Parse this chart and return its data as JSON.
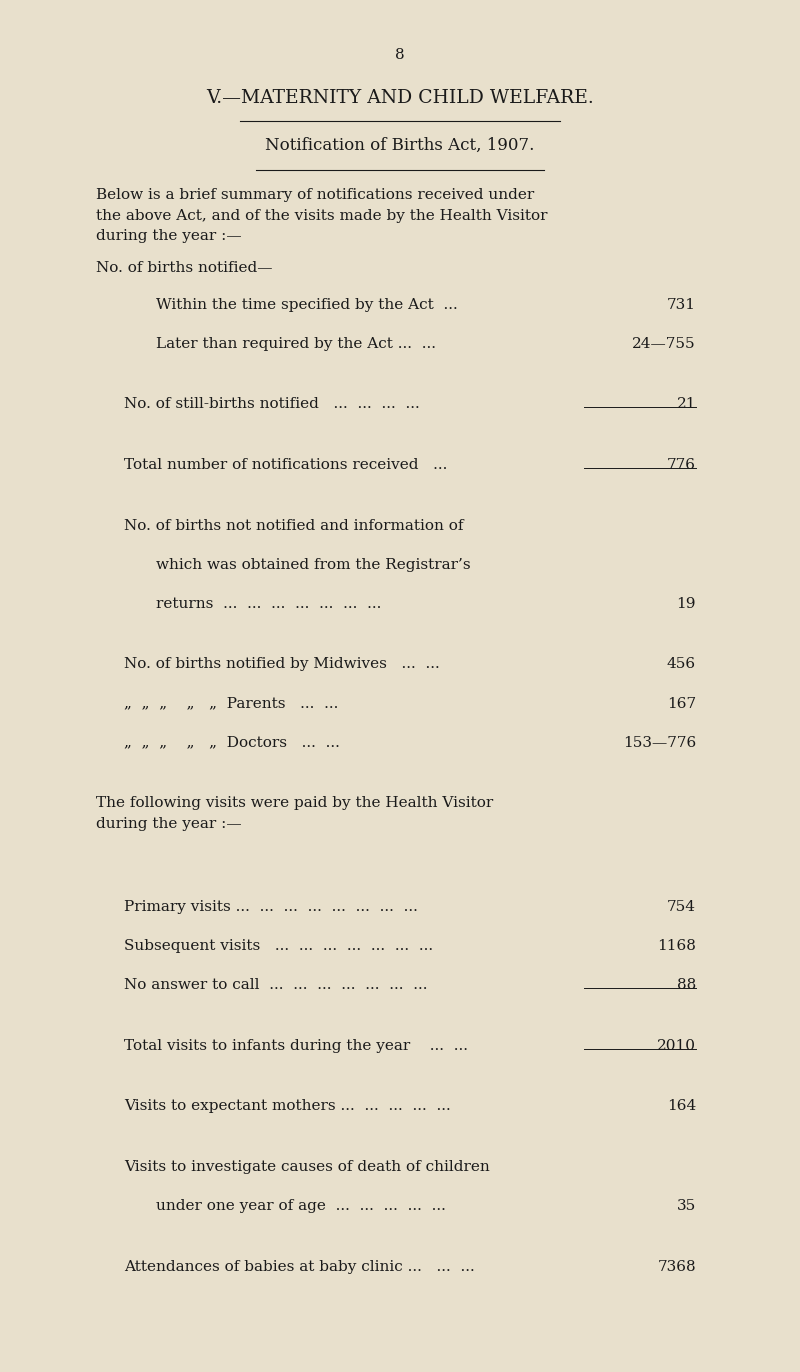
{
  "bg_color": "#e8e0cc",
  "text_color": "#1a1a1a",
  "page_number": "8",
  "title1": "V.—MATERNITY AND CHILD WELFARE.",
  "subtitle": "Notification of Births Act, 1907.",
  "intro": "Below is a brief summary of notifications received under\nthe above Act, and of the visits made by the Health Visitor\nduring the year :—",
  "section1_header": "No. of births notified—",
  "lines": [
    {
      "text": "Within the time specified by the Act  ...",
      "value": "731",
      "indent": 2,
      "underline_after": false
    },
    {
      "text": "Later than required by the Act ...  ...",
      "value": "24—755",
      "indent": 2,
      "underline_after": false
    },
    {
      "text": "",
      "value": "",
      "indent": 0,
      "underline_after": false
    },
    {
      "text": "No. of still-births notified   ...  ...  ...  ...",
      "value": "21",
      "indent": 1,
      "underline_after": true
    },
    {
      "text": "",
      "value": "",
      "indent": 0,
      "underline_after": false
    },
    {
      "text": "Total number of notifications received   ...",
      "value": "776",
      "indent": 1,
      "underline_after": true
    },
    {
      "text": "",
      "value": "",
      "indent": 0,
      "underline_after": false
    },
    {
      "text": "No. of births not notified and information of",
      "value": "",
      "indent": 1,
      "underline_after": false
    },
    {
      "text": "which was obtained from the Registrar’s",
      "value": "",
      "indent": 2,
      "underline_after": false
    },
    {
      "text": "returns  ...  ...  ...  ...  ...  ...  ...",
      "value": "19",
      "indent": 2,
      "underline_after": false
    },
    {
      "text": "",
      "value": "",
      "indent": 0,
      "underline_after": false
    },
    {
      "text": "No. of births notified by Midwives   ...  ...",
      "value": "456",
      "indent": 1,
      "underline_after": false
    },
    {
      "text": "„  „  „    „   „  Parents   ...  ...",
      "value": "167",
      "indent": 1,
      "underline_after": false
    },
    {
      "text": "„  „  „    „   „  Doctors   ...  ...",
      "value": "153—776",
      "indent": 1,
      "underline_after": false
    },
    {
      "text": "",
      "value": "",
      "indent": 0,
      "underline_after": false
    },
    {
      "text": "The following visits were paid by the Health Visitor\nduring the year :—",
      "value": "",
      "indent": 0,
      "underline_after": false,
      "paragraph": true
    },
    {
      "text": "",
      "value": "",
      "indent": 0,
      "underline_after": false
    },
    {
      "text": "Primary visits ...  ...  ...  ...  ...  ...  ...  ...",
      "value": "754",
      "indent": 1,
      "underline_after": false
    },
    {
      "text": "Subsequent visits   ...  ...  ...  ...  ...  ...  ...",
      "value": "1168",
      "indent": 1,
      "underline_after": false
    },
    {
      "text": "No answer to call  ...  ...  ...  ...  ...  ...  ...",
      "value": "88",
      "indent": 1,
      "underline_after": true
    },
    {
      "text": "",
      "value": "",
      "indent": 0,
      "underline_after": false
    },
    {
      "text": "Total visits to infants during the year    ...  ...",
      "value": "2010",
      "indent": 1,
      "underline_after": true
    },
    {
      "text": "",
      "value": "",
      "indent": 0,
      "underline_after": false
    },
    {
      "text": "Visits to expectant mothers ...  ...  ...  ...  ...",
      "value": "164",
      "indent": 1,
      "underline_after": false
    },
    {
      "text": "",
      "value": "",
      "indent": 0,
      "underline_after": false
    },
    {
      "text": "Visits to investigate causes of death of children",
      "value": "",
      "indent": 1,
      "underline_after": false
    },
    {
      "text": "under one year of age  ...  ...  ...  ...  ...",
      "value": "35",
      "indent": 2,
      "underline_after": false
    },
    {
      "text": "",
      "value": "",
      "indent": 0,
      "underline_after": false
    },
    {
      "text": "Attendances of babies at baby clinic ...   ...  ...",
      "value": "7368",
      "indent": 1,
      "underline_after": false
    }
  ]
}
